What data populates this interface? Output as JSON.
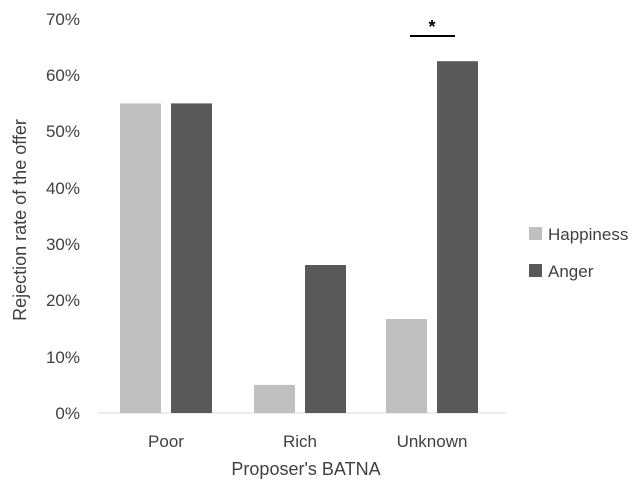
{
  "chart_data": {
    "type": "bar",
    "title": "",
    "xlabel": "Proposer's BATNA",
    "ylabel": "Rejection rate of the offer",
    "categories": [
      "Poor",
      "Rich",
      "Unknown"
    ],
    "series": [
      {
        "name": "Happiness",
        "values": [
          55,
          5,
          16.7
        ],
        "color": "#c0c0c0"
      },
      {
        "name": "Anger",
        "values": [
          55,
          26.3,
          62.5
        ],
        "color": "#595959"
      }
    ],
    "ylim": [
      0,
      70
    ],
    "yticks": [
      "0%",
      "10%",
      "20%",
      "30%",
      "40%",
      "50%",
      "60%",
      "70%"
    ],
    "y_unit": "percent",
    "grid": false,
    "legend_position": "right",
    "annotations": [
      {
        "text": "*",
        "category": "Unknown",
        "type": "significance-bracket"
      }
    ]
  }
}
